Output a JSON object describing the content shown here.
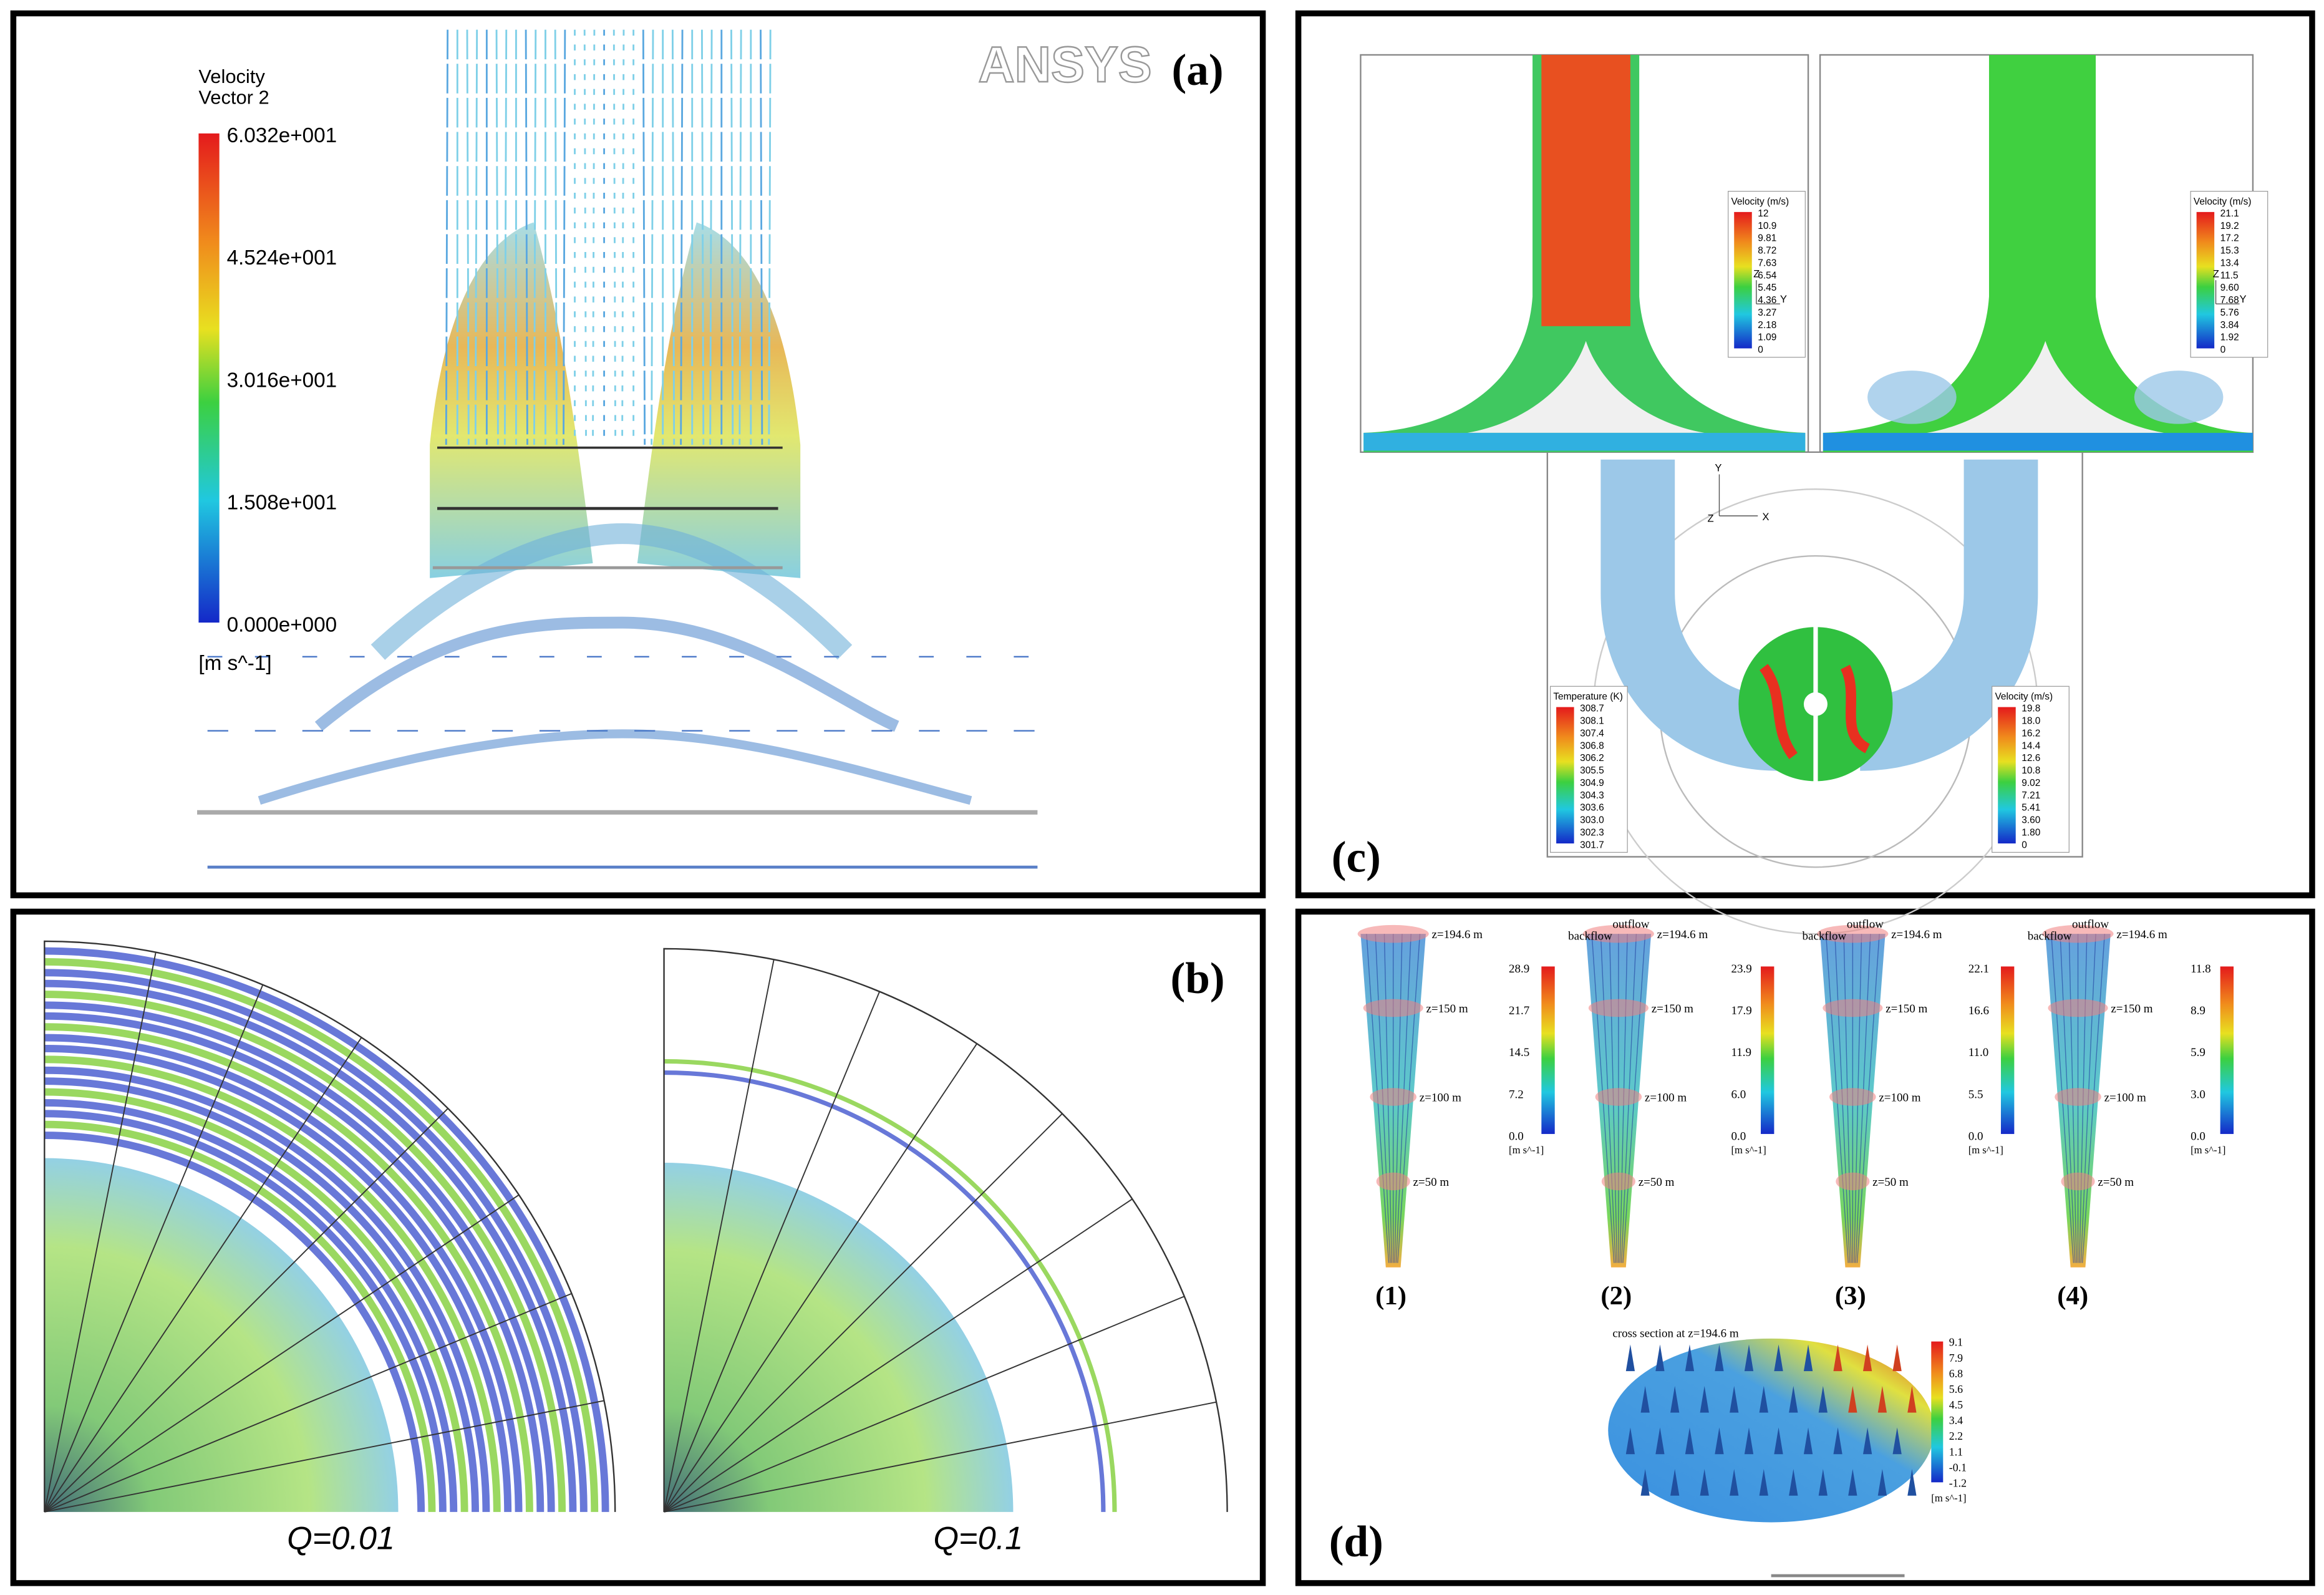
{
  "panels": {
    "a": {
      "label": "(a)",
      "logo": "ANSYS",
      "colorbar": {
        "title": [
          "Velocity",
          "Vector 2"
        ],
        "ticks": [
          "6.032e+001",
          "4.524e+001",
          "3.016e+001",
          "1.508e+001",
          "0.000e+000"
        ],
        "unit": "[m s^-1]"
      }
    },
    "b": {
      "label": "(b)",
      "captions": [
        "Q=0.01",
        "Q=0.1"
      ]
    },
    "c": {
      "label": "(c)",
      "colorbars": [
        {
          "title": "Velocity (m/s)",
          "ticks": [
            "12",
            "10.9",
            "9.81",
            "8.72",
            "7.63",
            "6.54",
            "5.45",
            "4.36",
            "3.27",
            "2.18",
            "1.09",
            "0"
          ]
        },
        {
          "title": "Velocity (m/s)",
          "ticks": [
            "21.1",
            "19.2",
            "17.2",
            "15.3",
            "13.4",
            "11.5",
            "9.60",
            "7.68",
            "5.76",
            "3.84",
            "1.92",
            "0"
          ]
        },
        {
          "title": "Temperature (K)",
          "ticks": [
            "308.7",
            "308.1",
            "307.4",
            "306.8",
            "306.2",
            "305.5",
            "304.9",
            "304.3",
            "303.6",
            "303.0",
            "302.3",
            "301.7"
          ]
        },
        {
          "title": "Velocity (m/s)",
          "ticks": [
            "19.8",
            "18.0",
            "16.2",
            "14.4",
            "12.6",
            "10.8",
            "9.02",
            "7.21",
            "5.41",
            "3.60",
            "1.80",
            "0"
          ]
        }
      ],
      "axes_side": [
        "Z",
        "Y"
      ],
      "axes_top": [
        "Y",
        "Z",
        "X"
      ]
    },
    "d": {
      "label": "(d)",
      "cases": [
        "(1)",
        "(2)",
        "(3)",
        "(4)"
      ],
      "colorbars": [
        {
          "ticks": [
            "28.9",
            "21.7",
            "14.5",
            "7.2",
            "0.0"
          ],
          "unit": "[m s^-1]"
        },
        {
          "ticks": [
            "23.9",
            "17.9",
            "11.9",
            "6.0",
            "0.0"
          ],
          "unit": "[m s^-1]"
        },
        {
          "ticks": [
            "22.1",
            "16.6",
            "11.0",
            "5.5",
            "0.0"
          ],
          "unit": "[m s^-1]"
        },
        {
          "ticks": [
            "11.8",
            "8.9",
            "5.9",
            "3.0",
            "0.0"
          ],
          "unit": "[m s^-1]"
        }
      ],
      "levels": [
        "z=194.6 m",
        "z=150 m",
        "z=100 m",
        "z=50 m"
      ],
      "outflow": "outflow",
      "backflow": "backflow",
      "section": {
        "caption": "cross section at z=194.6 m",
        "ticks": [
          "9.1",
          "7.9",
          "6.8",
          "5.6",
          "4.5",
          "3.4",
          "2.2",
          "1.1",
          "-0.1",
          "-1.2"
        ],
        "unit": "[m s^-1]"
      }
    }
  }
}
